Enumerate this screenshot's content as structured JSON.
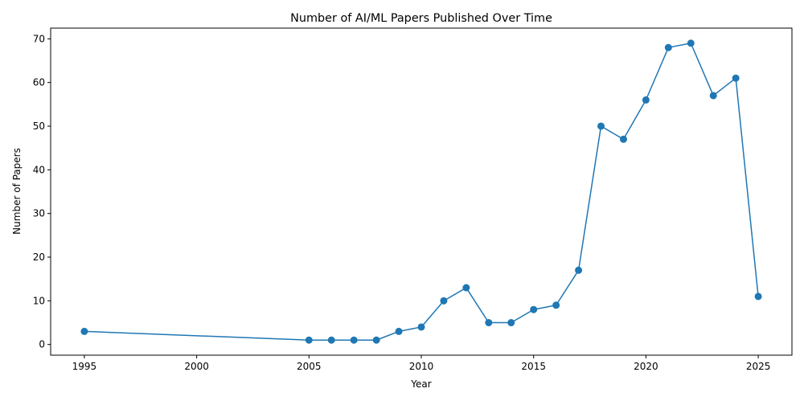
{
  "chart_data": {
    "type": "line",
    "title": "Number of AI/ML Papers Published Over Time",
    "xlabel": "Year",
    "ylabel": "Number of Papers",
    "xlim": [
      1993.5,
      2026.5
    ],
    "ylim": [
      -2.45,
      72.45
    ],
    "xticks": [
      1995,
      2000,
      2005,
      2010,
      2015,
      2020,
      2025
    ],
    "yticks": [
      0,
      10,
      20,
      30,
      40,
      50,
      60,
      70
    ],
    "grid": false,
    "series": [
      {
        "color": "#1f77b4",
        "marker": "circle",
        "x": [
          1995,
          2005,
          2006,
          2007,
          2008,
          2009,
          2010,
          2011,
          2012,
          2013,
          2014,
          2015,
          2016,
          2017,
          2018,
          2019,
          2020,
          2021,
          2022,
          2023,
          2024,
          2025
        ],
        "y": [
          3,
          1,
          1,
          1,
          1,
          3,
          4,
          10,
          13,
          5,
          5,
          8,
          9,
          17,
          50,
          47,
          56,
          68,
          69,
          57,
          61,
          11
        ]
      }
    ]
  }
}
